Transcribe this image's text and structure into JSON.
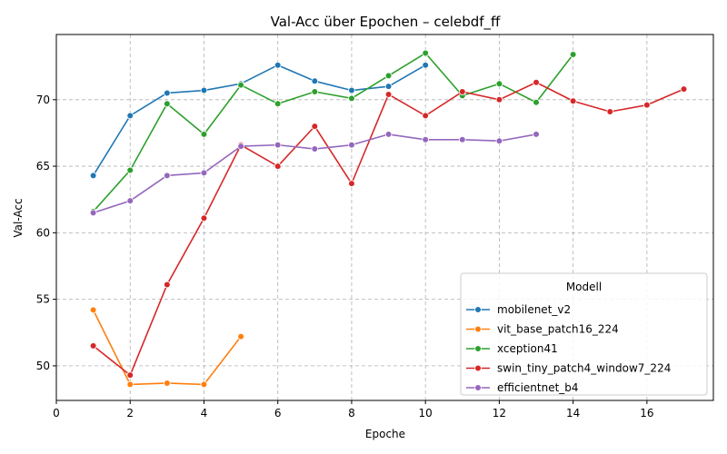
{
  "chart_data": {
    "type": "line",
    "title": "Val-Acc über Epochen – celebdf_ff",
    "xlabel": "Epoche",
    "ylabel": "Val-Acc",
    "xlim": [
      0,
      17.8
    ],
    "ylim": [
      47.4,
      74.9
    ],
    "xticks": [
      0,
      2,
      4,
      6,
      8,
      10,
      12,
      14,
      16
    ],
    "yticks": [
      50,
      55,
      60,
      65,
      70
    ],
    "grid": true,
    "legend_title": "Modell",
    "legend_position": "lower-right",
    "series": [
      {
        "name": "mobilenet_v2",
        "color": "#1f77b4",
        "x": [
          1,
          2,
          3,
          4,
          5,
          6,
          7,
          8,
          9,
          10
        ],
        "y": [
          64.3,
          68.8,
          70.5,
          70.7,
          71.2,
          72.6,
          71.4,
          70.7,
          71.0,
          72.6
        ]
      },
      {
        "name": "vit_base_patch16_224",
        "color": "#ff7f0e",
        "x": [
          1,
          2,
          3,
          4,
          5
        ],
        "y": [
          54.2,
          48.6,
          48.7,
          48.6,
          52.2
        ]
      },
      {
        "name": "xception41",
        "color": "#2ca02c",
        "x": [
          1,
          2,
          3,
          4,
          5,
          6,
          7,
          8,
          9,
          10,
          11,
          12,
          13,
          14
        ],
        "y": [
          61.6,
          64.7,
          69.7,
          67.4,
          71.1,
          69.7,
          70.6,
          70.1,
          71.8,
          73.5,
          70.3,
          71.2,
          69.8,
          73.4
        ]
      },
      {
        "name": "swin_tiny_patch4_window7_224",
        "color": "#d62728",
        "x": [
          1,
          2,
          3,
          4,
          5,
          6,
          7,
          8,
          9,
          10,
          11,
          12,
          13,
          14,
          15,
          16,
          17
        ],
        "y": [
          51.5,
          49.3,
          56.1,
          61.1,
          66.6,
          65.0,
          68.0,
          63.7,
          70.4,
          68.8,
          70.6,
          70.0,
          71.3,
          69.9,
          69.1,
          69.6,
          70.8
        ]
      },
      {
        "name": "efficientnet_b4",
        "color": "#9467bd",
        "x": [
          1,
          2,
          3,
          4,
          5,
          6,
          7,
          8,
          9,
          10,
          11,
          12,
          13
        ],
        "y": [
          61.5,
          62.4,
          64.3,
          64.5,
          66.5,
          66.6,
          66.3,
          66.6,
          67.4,
          67.0,
          67.0,
          66.9,
          67.4
        ]
      }
    ]
  }
}
